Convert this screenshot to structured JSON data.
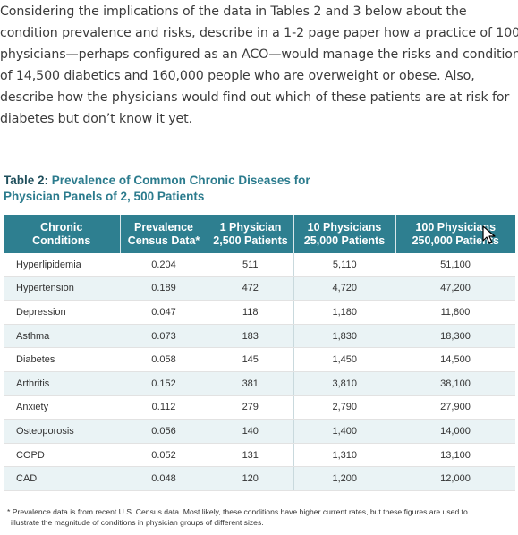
{
  "paragraph_lines": [
    "Considering the implications of the data in Tables 2 and 3 below about the",
    "condition prevalence and risks, describe in a 1-2 page paper how a practice of 100",
    "physicians—perhaps configured as an ACO—would manage the risks and conditions",
    "of 14,500 diabetics and 160,000 people who are overweight or obese. Also,",
    "describe how the physicians would find out which of these patients are at risk for",
    "diabetes but don’t know it yet."
  ],
  "table": {
    "title_label": "Table 2:",
    "title_text_line1": "Prevalence of Common Chronic Diseases for",
    "title_text_line2": "Physician Panels of 2, 500 Patients",
    "headers": [
      {
        "line1": "Chronic",
        "line2": "Conditions"
      },
      {
        "line1": "Prevalence",
        "line2": "Census Data*"
      },
      {
        "line1": "1 Physician",
        "line2": "2,500 Patients"
      },
      {
        "line1": "10 Physicians",
        "line2": "25,000 Patients"
      },
      {
        "line1": "100 Physicians",
        "line2": "250,000 Patients"
      }
    ],
    "rows": [
      [
        "Hyperlipidemia",
        "0.204",
        "511",
        "5,110",
        "51,100"
      ],
      [
        "Hypertension",
        "0.189",
        "472",
        "4,720",
        "47,200"
      ],
      [
        "Depression",
        "0.047",
        "118",
        "1,180",
        "11,800"
      ],
      [
        "Asthma",
        "0.073",
        "183",
        "1,830",
        "18,300"
      ],
      [
        "Diabetes",
        "0.058",
        "145",
        "1,450",
        "14,500"
      ],
      [
        "Arthritis",
        "0.152",
        "381",
        "3,810",
        "38,100"
      ],
      [
        "Anxiety",
        "0.112",
        "279",
        "2,790",
        "27,900"
      ],
      [
        "Osteoporosis",
        "0.056",
        "140",
        "1,400",
        "14,000"
      ],
      [
        "COPD",
        "0.052",
        "131",
        "1,310",
        "13,100"
      ],
      [
        "CAD",
        "0.048",
        "120",
        "1,200",
        "12,000"
      ]
    ],
    "footnote_line1": "* Prevalence data is from recent U.S. Census data.  Most likely, these conditions have higher current rates, but these figures are used to",
    "footnote_line2": "illustrate the magnitude of conditions in physician groups of different sizes."
  },
  "colors": {
    "header_bg": "#2e7f90",
    "title_teal": "#2b7b8d",
    "row_alt": "#eaf3f5"
  },
  "icons": {
    "cursor": "mouse-pointer-icon"
  }
}
